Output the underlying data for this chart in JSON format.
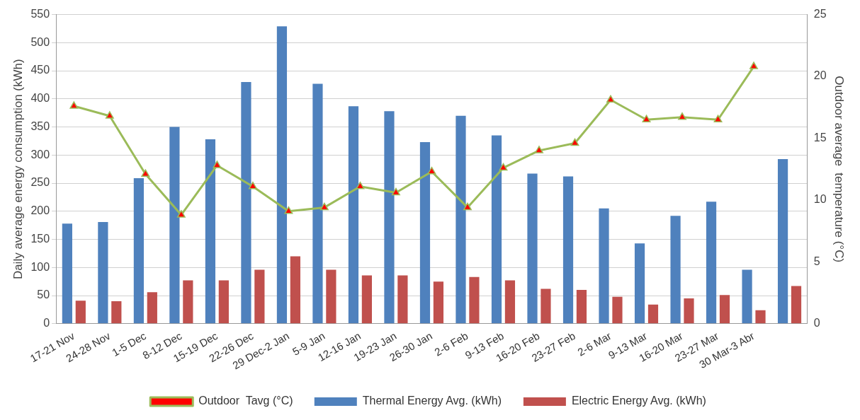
{
  "chart_data": {
    "type": "bar",
    "ylabel": "Daily average energy consumption (kWh)",
    "y2label": "Outdoor average  temperature (°C)",
    "categories": [
      "17-21 Nov",
      "24-28 Nov",
      "1-5 Dec",
      "8-12 Dec",
      "15-19 Dec",
      "22-26 Dec",
      "29 Dec-2 Jan",
      "5-9 Jan",
      "12-16 Jan",
      "19-23 Jan",
      "26-30 Jan",
      "2-6 Feb",
      "9-13 Feb",
      "16-20 Feb",
      "23-27 Feb",
      "2-6 Mar",
      "9-13 Mar",
      "16-20 Mar",
      "23-27 Mar",
      "30 Mar-3 Abr",
      null
    ],
    "series": [
      {
        "name": "Thermal Energy Avg. (kWh)",
        "color": "#4f81bd",
        "values": [
          178,
          181,
          259,
          350,
          328,
          430,
          529,
          427,
          387,
          378,
          323,
          370,
          335,
          267,
          262,
          205,
          143,
          192,
          217,
          96,
          293
        ]
      },
      {
        "name": "Electric Energy Avg. (kWh)",
        "color": "#c0504d",
        "values": [
          41,
          40,
          56,
          77,
          77,
          96,
          120,
          96,
          86,
          86,
          75,
          83,
          77,
          62,
          60,
          48,
          34,
          45,
          51,
          24,
          67
        ]
      },
      {
        "name": "Outdoor  Tavg (°C)",
        "type": "line",
        "axis": "y2",
        "color": "#9bbb59",
        "marker": "triangle",
        "values": [
          17.6,
          16.8,
          12.1,
          8.8,
          12.8,
          11.1,
          9.1,
          9.4,
          11.1,
          10.6,
          12.3,
          9.4,
          12.6,
          14.0,
          14.6,
          18.1,
          16.5,
          16.7,
          16.5,
          20.8,
          null
        ]
      }
    ],
    "ylim": [
      0,
      550
    ],
    "yticks": [
      0,
      50,
      100,
      150,
      200,
      250,
      300,
      350,
      400,
      450,
      500,
      550
    ],
    "y2lim": [
      0,
      25
    ],
    "y2ticks": [
      0,
      5,
      10,
      15,
      20,
      25
    ],
    "grid": "y",
    "legend": "bottom"
  }
}
